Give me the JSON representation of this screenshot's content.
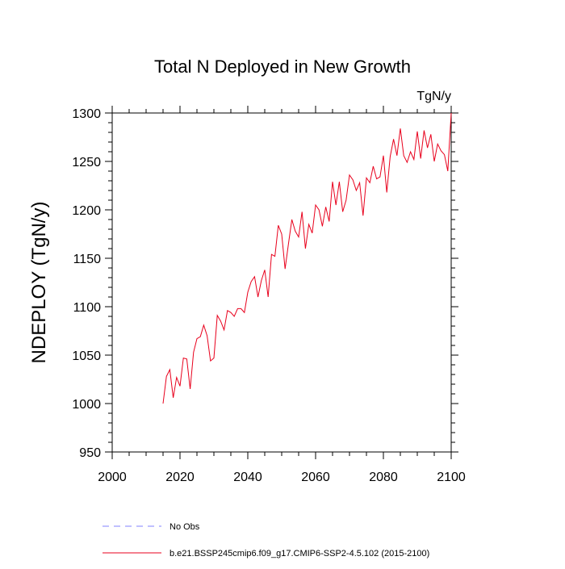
{
  "chart_data": {
    "type": "line",
    "title": "Total N Deployed in New Growth",
    "units": "TgN/y",
    "y_label": "NDEPLOY  (TgN/y)",
    "x": [
      2015,
      2016,
      2017,
      2018,
      2019,
      2020,
      2021,
      2022,
      2023,
      2024,
      2025,
      2026,
      2027,
      2028,
      2029,
      2030,
      2031,
      2032,
      2033,
      2034,
      2035,
      2036,
      2037,
      2038,
      2039,
      2040,
      2041,
      2042,
      2043,
      2044,
      2045,
      2046,
      2047,
      2048,
      2049,
      2050,
      2051,
      2052,
      2053,
      2054,
      2055,
      2056,
      2057,
      2058,
      2059,
      2060,
      2061,
      2062,
      2063,
      2064,
      2065,
      2066,
      2067,
      2068,
      2069,
      2070,
      2071,
      2072,
      2073,
      2074,
      2075,
      2076,
      2077,
      2078,
      2079,
      2080,
      2081,
      2082,
      2083,
      2084,
      2085,
      2086,
      2087,
      2088,
      2089,
      2090,
      2091,
      2092,
      2093,
      2094,
      2095,
      2096,
      2097,
      2098,
      2099,
      2100
    ],
    "series": [
      {
        "name": "b.e21.BSSP245cmip6.f09_g17.CMIP6-SSP2-4.5.102 (2015-2100)",
        "color": "#e8001c",
        "dashed": false,
        "values": [
          1000,
          1028,
          1035,
          1006,
          1027,
          1018,
          1047,
          1046,
          1015,
          1053,
          1067,
          1069,
          1081,
          1070,
          1044,
          1047,
          1091,
          1085,
          1076,
          1096,
          1094,
          1090,
          1098,
          1098,
          1094,
          1115,
          1126,
          1131,
          1110,
          1127,
          1138,
          1110,
          1154,
          1152,
          1184,
          1175,
          1139,
          1165,
          1190,
          1178,
          1172,
          1198,
          1160,
          1185,
          1176,
          1205,
          1200,
          1183,
          1203,
          1188,
          1229,
          1205,
          1229,
          1198,
          1210,
          1236,
          1231,
          1220,
          1228,
          1194,
          1233,
          1228,
          1245,
          1232,
          1234,
          1256,
          1218,
          1255,
          1273,
          1256,
          1284,
          1256,
          1249,
          1260,
          1252,
          1281,
          1253,
          1282,
          1264,
          1278,
          1250,
          1268,
          1261,
          1257,
          1240,
          1300
        ]
      },
      {
        "name": "No Obs",
        "color": "#8080ff",
        "dashed": true,
        "values": [
          null,
          null,
          null,
          null,
          null,
          null,
          null,
          null,
          null,
          null,
          null,
          null,
          null,
          null,
          null,
          null,
          null,
          null,
          null,
          null,
          null,
          null,
          null,
          null,
          null,
          null,
          null,
          null,
          null,
          null,
          null,
          null,
          null,
          null,
          null,
          null,
          null,
          null,
          null,
          null,
          null,
          null,
          null,
          null,
          null,
          null,
          null,
          null,
          null,
          null,
          null,
          null,
          null,
          null,
          null,
          null,
          null,
          null,
          null,
          null,
          null,
          null,
          null,
          null,
          null,
          null,
          null,
          null,
          null,
          null,
          null,
          null,
          null,
          null,
          null,
          null,
          null,
          null,
          null,
          null,
          null,
          null,
          null,
          null,
          null,
          null
        ]
      }
    ],
    "xlim": [
      2000,
      2100
    ],
    "xticks": [
      2000,
      2020,
      2040,
      2060,
      2080,
      2100
    ],
    "xminorticks": [
      2005,
      2010,
      2015,
      2025,
      2030,
      2035,
      2045,
      2050,
      2055,
      2065,
      2070,
      2075,
      2085,
      2090,
      2095
    ],
    "ylim": [
      950,
      1300
    ],
    "yticks": [
      950,
      1000,
      1050,
      1100,
      1150,
      1200,
      1250,
      1300
    ],
    "yminorticks": [
      960,
      970,
      980,
      990,
      1010,
      1020,
      1030,
      1040,
      1060,
      1070,
      1080,
      1090,
      1110,
      1120,
      1130,
      1140,
      1160,
      1170,
      1180,
      1190,
      1210,
      1220,
      1230,
      1240,
      1260,
      1270,
      1280,
      1290
    ]
  }
}
